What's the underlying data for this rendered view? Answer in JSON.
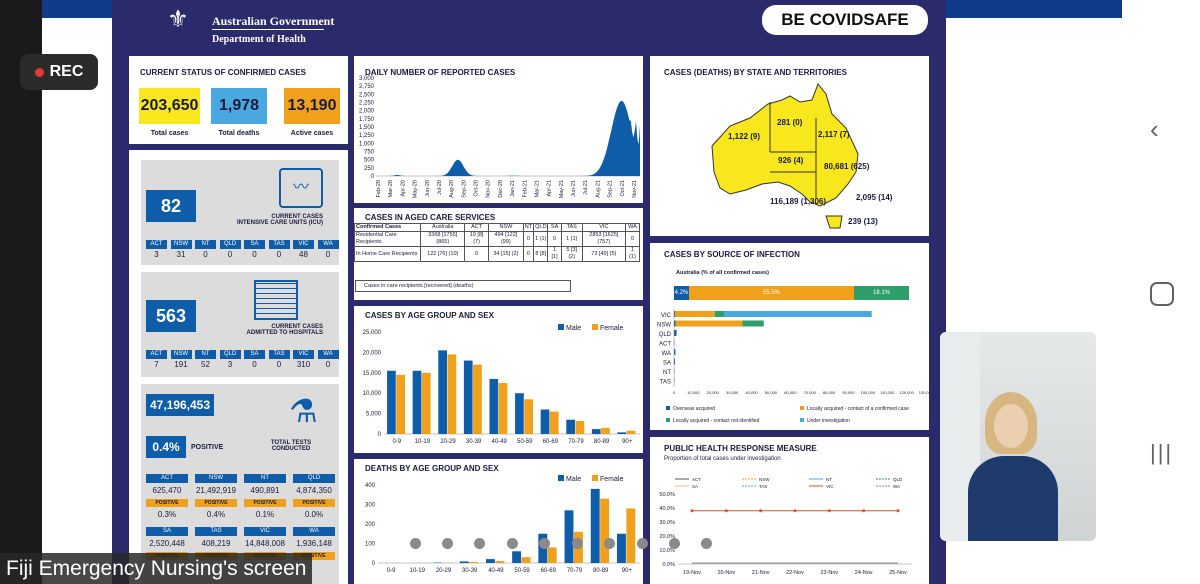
{
  "recording": {
    "label": "REC"
  },
  "header": {
    "gov": "Australian Government",
    "dept": "Department of Health",
    "slogan_a": "BE COVID",
    "slogan_b": "SAFE"
  },
  "status": {
    "title": "CURRENT STATUS OF CONFIRMED CASES",
    "total_cases": "203,650",
    "total_cases_label": "Total cases",
    "total_deaths": "1,978",
    "total_deaths_label": "Total deaths",
    "active_cases": "13,190",
    "active_cases_label": "Active cases"
  },
  "icu": {
    "value": "82",
    "label": "CURRENT CASES\nINTENSIVE CARE UNITS (ICU)",
    "states": [
      "ACT",
      "NSW",
      "NT",
      "QLD",
      "SA",
      "TAS",
      "VIC",
      "WA"
    ],
    "values": [
      "3",
      "31",
      "0",
      "0",
      "0",
      "0",
      "48",
      "0"
    ]
  },
  "hosp": {
    "value": "563",
    "label": "CURRENT CASES\nADMITTED TO HOSPITALS",
    "states": [
      "ACT",
      "NSW",
      "NT",
      "QLD",
      "SA",
      "TAS",
      "VIC",
      "WA"
    ],
    "values": [
      "7",
      "191",
      "52",
      "3",
      "0",
      "0",
      "310",
      "0"
    ]
  },
  "tests": {
    "total": "47,196,453",
    "positive_pct": "0.4%",
    "positive_label": "POSITIVE",
    "total_label": "TOTAL TESTS\nCONDUCTED",
    "positive_chip": "POSITIVE",
    "row1": [
      {
        "s": "ACT",
        "v": "625,470",
        "p": "0.3%"
      },
      {
        "s": "NSW",
        "v": "21,492,919",
        "p": "0.4%"
      },
      {
        "s": "NT",
        "v": "490,891",
        "p": "0.1%"
      },
      {
        "s": "QLD",
        "v": "4,874,350",
        "p": "0.0%"
      }
    ],
    "row2": [
      {
        "s": "SA",
        "v": "2,520,448"
      },
      {
        "s": "TAS",
        "v": "408,219"
      },
      {
        "s": "VIC",
        "v": "14,848,008"
      },
      {
        "s": "WA",
        "v": "1,936,148"
      }
    ]
  },
  "daily": {
    "title": "DAILY NUMBER OF REPORTED CASES",
    "yticks": [
      "3,000",
      "2,750",
      "2,500",
      "2,250",
      "2,000",
      "1,750",
      "1,500",
      "1,250",
      "1,000",
      "750",
      "500",
      "250",
      "0"
    ],
    "xticks": [
      "Feb-20",
      "Mar-20",
      "Apr-20",
      "May-20",
      "Jun-20",
      "Jul-20",
      "Aug-20",
      "Sep-20",
      "Oct-20",
      "Nov-20",
      "Dec-20",
      "Jan-21",
      "Feb-21",
      "Mar-21",
      "Apr-21",
      "May-21",
      "Jun-21",
      "Jul-21",
      "Aug-21",
      "Sep-21",
      "Oct-21",
      "Nov-21"
    ]
  },
  "map": {
    "title": "CASES (DEATHS) BY STATE AND TERRITORIES",
    "wa": "1,122 (9)",
    "nt": "281 (0)",
    "qld": "2,117 (7)",
    "sa": "926 (4)",
    "nsw": "80,681 (625)",
    "act": "2,095 (14)",
    "vic": "116,189 (1,306)",
    "tas": "239 (13)"
  },
  "aged": {
    "title": "CASES IN AGED CARE SERVICES",
    "cols": [
      "Confirmed Cases",
      "Australia",
      "ACT",
      "NSW",
      "NT",
      "QLD",
      "SA",
      "TAS",
      "VIC",
      "WA"
    ],
    "r1": [
      "Residential Care Recipients",
      "3368 [1755] (865)",
      "19 [8] (7)",
      "494 [122] (99)",
      "0",
      "1 (1)",
      "0",
      "1 (1)",
      "2853 [1625] (757)",
      "0"
    ],
    "r2": [
      "In Home Care Recipients",
      "122 [76] (10)",
      "0",
      "34 [15] (2)",
      "0",
      "8 [8]",
      "1 [1]",
      "5 [3] (2)",
      "73 [49] (5)",
      "1 (1)"
    ],
    "note": "Cases in care recipients [recovered] (deaths)"
  },
  "source": {
    "title": "CASES BY SOURCE OF INFECTION",
    "subtitle": "Australia (% of all confirmed cases)",
    "p1": "4.2%",
    "p2": "55.5%",
    "p3": "18.1%",
    "states": [
      "VIC",
      "NSW",
      "QLD",
      "ACT",
      "WA",
      "SA",
      "NT",
      "TAS"
    ],
    "xticks": [
      "0",
      "10,000",
      "20,000",
      "30,000",
      "40,000",
      "50,000",
      "60,000",
      "70,000",
      "80,000",
      "90,000",
      "100,000",
      "110,000",
      "120,000",
      "130,000"
    ],
    "legend": [
      "Overseas acquired",
      "Locally acquired - contact of a confirmed case",
      "Locally acquired - contact not identified",
      "Under investigation"
    ],
    "colors": {
      "overseas": "#0f5ca9",
      "contact": "#f0a01a",
      "unknown": "#2e9e6b",
      "investigation": "#4aa8e0"
    }
  },
  "age": {
    "title": "CASES BY AGE GROUP AND SEX",
    "male": "Male",
    "female": "Female",
    "yticks": [
      "25,000",
      "20,000",
      "15,000",
      "10,000",
      "5,000",
      "0"
    ]
  },
  "deaths": {
    "title": "DEATHS BY AGE GROUP AND SEX",
    "male": "Male",
    "female": "Female",
    "yticks": [
      "400",
      "300",
      "200",
      "100",
      "0"
    ]
  },
  "phrm": {
    "title": "PUBLIC HEALTH RESPONSE MEASURE",
    "subtitle": "Proportion of total cases under investigation",
    "legend": [
      "ACT",
      "NSW",
      "NT",
      "QLD",
      "SA",
      "TAS",
      "VIC",
      "WA"
    ],
    "yticks": [
      "50.0%",
      "40.0%",
      "30.0%",
      "20.0%",
      "10.0%",
      "0.0%"
    ],
    "xticks": [
      "19-Nov",
      "20-Nov",
      "21-Nov",
      "22-Nov",
      "23-Nov",
      "24-Nov",
      "25-Nov"
    ]
  },
  "screen_label": "Fiji Emergency Nursing's screen",
  "chart_data": [
    {
      "type": "bar",
      "title": "CASES BY AGE GROUP AND SEX",
      "categories": [
        "0-9",
        "10-19",
        "20-29",
        "30-39",
        "40-49",
        "50-59",
        "60-69",
        "70-79",
        "80-89",
        "90+"
      ],
      "series": [
        {
          "name": "Male",
          "values": [
            15500,
            15500,
            20500,
            18000,
            13500,
            10000,
            6000,
            3500,
            1200,
            400
          ]
        },
        {
          "name": "Female",
          "values": [
            14500,
            15000,
            19500,
            17000,
            12500,
            8500,
            5500,
            3200,
            1500,
            800
          ]
        }
      ],
      "ylim": [
        0,
        25000
      ]
    },
    {
      "type": "bar",
      "title": "DEATHS BY AGE GROUP AND SEX",
      "categories": [
        "0-9",
        "10-19",
        "20-29",
        "30-39",
        "40-49",
        "50-59",
        "60-69",
        "70-79",
        "80-89",
        "90+"
      ],
      "series": [
        {
          "name": "Male",
          "values": [
            0,
            0,
            2,
            8,
            20,
            60,
            150,
            270,
            380,
            150
          ]
        },
        {
          "name": "Female",
          "values": [
            0,
            0,
            1,
            5,
            10,
            30,
            80,
            160,
            330,
            280
          ]
        }
      ],
      "ylim": [
        0,
        400
      ]
    }
  ]
}
